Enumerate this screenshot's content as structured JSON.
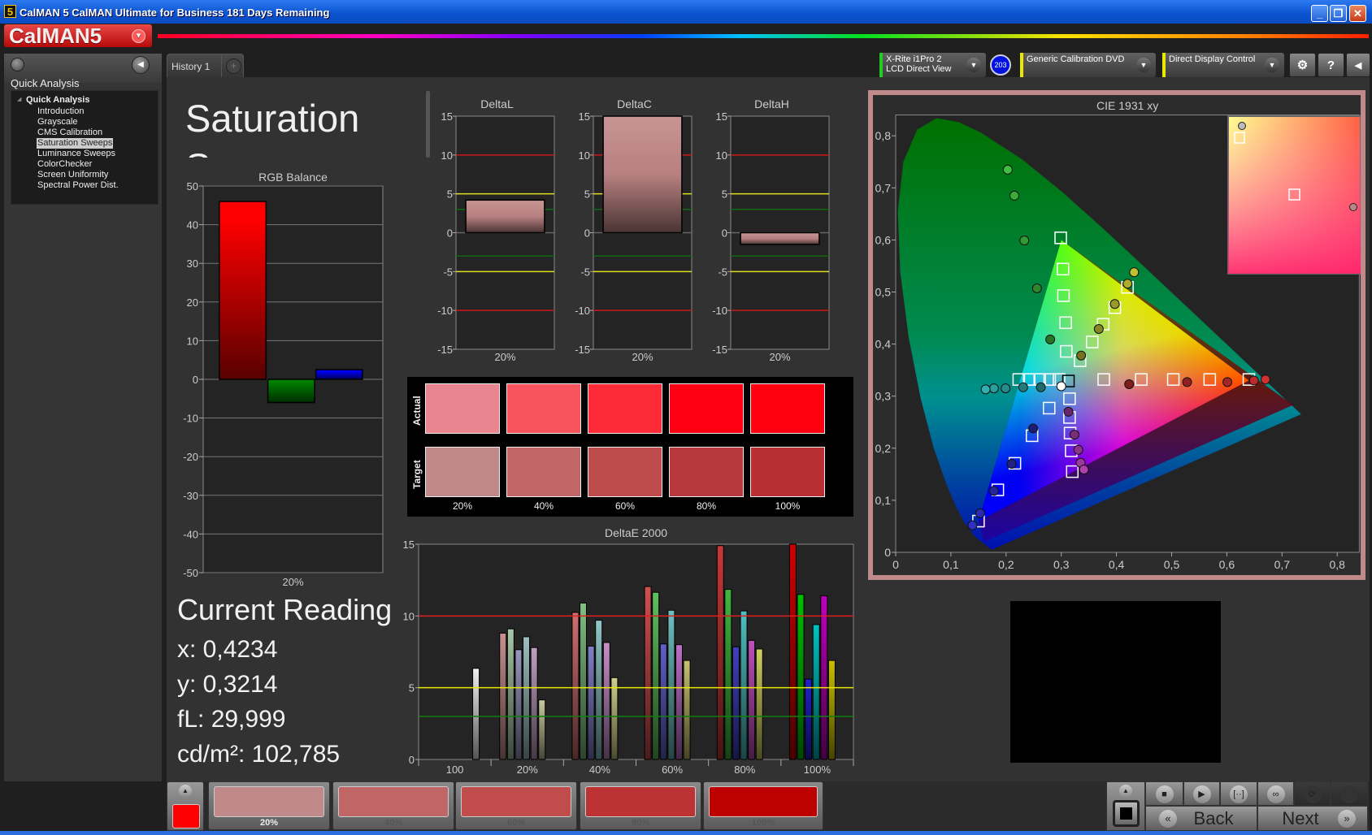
{
  "window": {
    "title": "CalMAN 5 CalMAN Ultimate for Business 181 Days Remaining",
    "app_icon": "5",
    "minimize": "_",
    "restore": "❐",
    "close": "✕"
  },
  "logo": {
    "text": "CalMAN5"
  },
  "sidebar": {
    "header": "Quick Analysis",
    "tree_root": "Quick Analysis",
    "items": [
      "Introduction",
      "Grayscale",
      "CMS Calibration",
      "Saturation Sweeps",
      "Luminance Sweeps",
      "ColorChecker",
      "Screen Uniformity",
      "Spectral Power Dist."
    ],
    "selected": "Saturation Sweeps"
  },
  "tabs": [
    {
      "label": "History 1"
    }
  ],
  "add_tab": "+",
  "toolbar": {
    "meter_line1": "X-Rite i1Pro 2",
    "meter_line2": "LCD Direct View",
    "meter_badge": "203",
    "source": "Generic Calibration DVD",
    "display": "Direct Display Control",
    "gear": "⚙",
    "help": "?",
    "collapse": "◀",
    "status_colors": {
      "meter": "#22cc22",
      "source": "#e8e800",
      "display": "#e8e800"
    }
  },
  "page": {
    "title": "Saturation Sweeps"
  },
  "swatch_panel": {
    "actual_label": "Actual",
    "target_label": "Target",
    "columns": [
      {
        "label": "20%",
        "actual": "#e8858f",
        "target": "#bf8889"
      },
      {
        "label": "40%",
        "actual": "#f7545e",
        "target": "#c06666"
      },
      {
        "label": "60%",
        "actual": "#fc2b37",
        "target": "#bf4c4c"
      },
      {
        "label": "80%",
        "actual": "#ff0013",
        "target": "#b9383d"
      },
      {
        "label": "100%",
        "actual": "#ff0010",
        "target": "#b72f33"
      }
    ]
  },
  "reading": {
    "title": "Current Reading",
    "x": "x: 0,4234",
    "y": "y: 0,3214",
    "fl": "fL: 29,999",
    "cdm2": "cd/m²: 102,785"
  },
  "bottom": {
    "current_color": "#ff0000",
    "swatches": [
      {
        "label": "20%",
        "color": "#c08a8a"
      },
      {
        "label": "40%",
        "color": "#c06666"
      },
      {
        "label": "60%",
        "color": "#c04c4c"
      },
      {
        "label": "80%",
        "color": "#bd3232"
      },
      {
        "label": "100%",
        "color": "#bf0000"
      }
    ],
    "controls": [
      "stop",
      "play",
      "fit",
      "loop",
      "refresh",
      "record"
    ],
    "back": "Back",
    "next": "Next"
  },
  "chart_data": [
    {
      "id": "rgb",
      "type": "bar",
      "title": "RGB Balance",
      "categories": [
        "20%"
      ],
      "ylim": [
        -50,
        50
      ],
      "yticks": [
        50,
        40,
        30,
        20,
        10,
        0,
        -10,
        -20,
        -30,
        -40,
        -50
      ],
      "grid": true,
      "series": [
        {
          "color": "#ff0000",
          "values": [
            46
          ]
        },
        {
          "color": "#008000",
          "values": [
            -6
          ]
        },
        {
          "color": "#0000ff",
          "values": [
            2.5
          ]
        }
      ]
    },
    {
      "id": "deltaL",
      "type": "bar",
      "title": "DeltaL",
      "categories": [
        "20%"
      ],
      "values": [
        4.2
      ],
      "ylim": [
        -15,
        15
      ],
      "yticks": [
        15,
        10,
        5,
        0,
        -5,
        -10,
        -15
      ]
    },
    {
      "id": "deltaC",
      "type": "bar",
      "title": "DeltaC",
      "categories": [
        "20%"
      ],
      "values": [
        15
      ],
      "ylim": [
        -15,
        15
      ],
      "yticks": [
        15,
        10,
        5,
        0,
        -5,
        -10,
        -15
      ]
    },
    {
      "id": "deltaH",
      "type": "bar",
      "title": "DeltaH",
      "categories": [
        "20%"
      ],
      "values": [
        -1.5
      ],
      "ylim": [
        -15,
        15
      ],
      "yticks": [
        15,
        10,
        5,
        0,
        -5,
        -10,
        -15
      ]
    },
    {
      "id": "deltaE",
      "type": "bar",
      "title": "DeltaE 2000",
      "ylim": [
        0,
        15
      ],
      "yticks": [
        15,
        10,
        5,
        0
      ],
      "thresholds": [
        {
          "value": 10,
          "color": "#e02020"
        },
        {
          "value": 5,
          "color": "#e8e800"
        },
        {
          "value": 3,
          "color": "#108010"
        }
      ],
      "groups": [
        {
          "label": "100",
          "bars": [
            {
              "color": "#f0f0f0",
              "value": 6.35
            }
          ]
        },
        {
          "label": "20%",
          "bars": [
            {
              "color": "#c89090",
              "value": 8.8
            },
            {
              "color": "#a8c8a8",
              "value": 9.1
            },
            {
              "color": "#9898c0",
              "value": 7.65
            },
            {
              "color": "#a0c0c0",
              "value": 8.55
            },
            {
              "color": "#c0a0c0",
              "value": 7.8
            },
            {
              "color": "#c8c8a0",
              "value": 4.15
            }
          ]
        },
        {
          "label": "40%",
          "bars": [
            {
              "color": "#d07070",
              "value": 10.25
            },
            {
              "color": "#80c080",
              "value": 10.9
            },
            {
              "color": "#8080c8",
              "value": 7.9
            },
            {
              "color": "#90c8c8",
              "value": 9.7
            },
            {
              "color": "#c890c8",
              "value": 8.15
            },
            {
              "color": "#d0d090",
              "value": 5.7
            }
          ]
        },
        {
          "label": "60%",
          "bars": [
            {
              "color": "#d05050",
              "value": 12.05
            },
            {
              "color": "#60c060",
              "value": 11.65
            },
            {
              "color": "#6060c8",
              "value": 8.05
            },
            {
              "color": "#70c0c0",
              "value": 10.4
            },
            {
              "color": "#c070c8",
              "value": 8.0
            },
            {
              "color": "#c8c070",
              "value": 6.9
            }
          ]
        },
        {
          "label": "80%",
          "bars": [
            {
              "color": "#c83838",
              "value": 14.9
            },
            {
              "color": "#40b840",
              "value": 11.85
            },
            {
              "color": "#4040c0",
              "value": 7.85
            },
            {
              "color": "#50c0c0",
              "value": 10.35
            },
            {
              "color": "#c050c0",
              "value": 8.3
            },
            {
              "color": "#d0d060",
              "value": 7.7
            }
          ]
        },
        {
          "label": "100%",
          "bars": [
            {
              "color": "#d00000",
              "value": 15.0
            },
            {
              "color": "#00c000",
              "value": 11.5
            },
            {
              "color": "#2020d0",
              "value": 5.6
            },
            {
              "color": "#00c0c0",
              "value": 9.4
            },
            {
              "color": "#c000c0",
              "value": 11.4
            },
            {
              "color": "#c8c000",
              "value": 6.9
            }
          ]
        }
      ]
    },
    {
      "id": "cie",
      "type": "scatter",
      "title": "CIE 1931 xy",
      "xlim": [
        0,
        0.84
      ],
      "ylim": [
        0,
        0.84
      ],
      "xticks": [
        "0",
        "0,1",
        "0,2",
        "0,3",
        "0,4",
        "0,5",
        "0,6",
        "0,7",
        "0,8"
      ],
      "yticks": [
        "0",
        "0,1",
        "0,2",
        "0,3",
        "0,4",
        "0,5",
        "0,6",
        "0,7",
        "0,8"
      ],
      "gamut": {
        "red": [
          0.64,
          0.33
        ],
        "green": [
          0.3,
          0.6
        ],
        "blue": [
          0.15,
          0.06
        ]
      },
      "white_target": [
        0.313,
        0.329
      ],
      "white_actual": [
        0.3,
        0.319
      ],
      "sweeps": [
        {
          "color": "#d03030",
          "targets": [
            [
              0.377,
              0.332
            ],
            [
              0.445,
              0.332
            ],
            [
              0.503,
              0.332
            ],
            [
              0.569,
              0.332
            ],
            [
              0.64,
              0.332
            ]
          ],
          "actual": [
            [
              0.423,
              0.323
            ],
            [
              0.528,
              0.327
            ],
            [
              0.601,
              0.327
            ],
            [
              0.649,
              0.33
            ],
            [
              0.67,
              0.332
            ]
          ]
        },
        {
          "color": "#40c040",
          "targets": [
            [
              0.309,
              0.386
            ],
            [
              0.308,
              0.441
            ],
            [
              0.304,
              0.493
            ],
            [
              0.303,
              0.544
            ],
            [
              0.299,
              0.604
            ]
          ],
          "actual": [
            [
              0.28,
              0.409
            ],
            [
              0.256,
              0.507
            ],
            [
              0.233,
              0.599
            ],
            [
              0.215,
              0.685
            ],
            [
              0.203,
              0.735
            ]
          ]
        },
        {
          "color": "#3030c0",
          "targets": [
            [
              0.278,
              0.277
            ],
            [
              0.247,
              0.224
            ],
            [
              0.216,
              0.171
            ],
            [
              0.185,
              0.12
            ],
            [
              0.15,
              0.06
            ]
          ],
          "actual": [
            [
              0.249,
              0.238
            ],
            [
              0.21,
              0.17
            ],
            [
              0.178,
              0.118
            ],
            [
              0.153,
              0.075
            ],
            [
              0.139,
              0.052
            ]
          ]
        },
        {
          "color": "#30b0b0",
          "targets": [
            [
              0.296,
              0.332
            ],
            [
              0.279,
              0.332
            ],
            [
              0.261,
              0.332
            ],
            [
              0.242,
              0.332
            ],
            [
              0.223,
              0.332
            ]
          ],
          "actual": [
            [
              0.263,
              0.317
            ],
            [
              0.231,
              0.317
            ],
            [
              0.199,
              0.315
            ],
            [
              0.178,
              0.315
            ],
            [
              0.163,
              0.313
            ]
          ]
        },
        {
          "color": "#b040b0",
          "targets": [
            [
              0.315,
              0.295
            ],
            [
              0.315,
              0.259
            ],
            [
              0.316,
              0.229
            ],
            [
              0.318,
              0.195
            ],
            [
              0.32,
              0.155
            ]
          ],
          "actual": [
            [
              0.313,
              0.27
            ],
            [
              0.324,
              0.226
            ],
            [
              0.331,
              0.197
            ],
            [
              0.335,
              0.172
            ],
            [
              0.341,
              0.159
            ]
          ]
        },
        {
          "color": "#c0c030",
          "targets": [
            [
              0.334,
              0.368
            ],
            [
              0.356,
              0.404
            ],
            [
              0.376,
              0.438
            ],
            [
              0.397,
              0.47
            ],
            [
              0.42,
              0.509
            ]
          ],
          "actual": [
            [
              0.336,
              0.378
            ],
            [
              0.368,
              0.429
            ],
            [
              0.397,
              0.477
            ],
            [
              0.42,
              0.516
            ],
            [
              0.432,
              0.538
            ]
          ]
        }
      ]
    }
  ]
}
